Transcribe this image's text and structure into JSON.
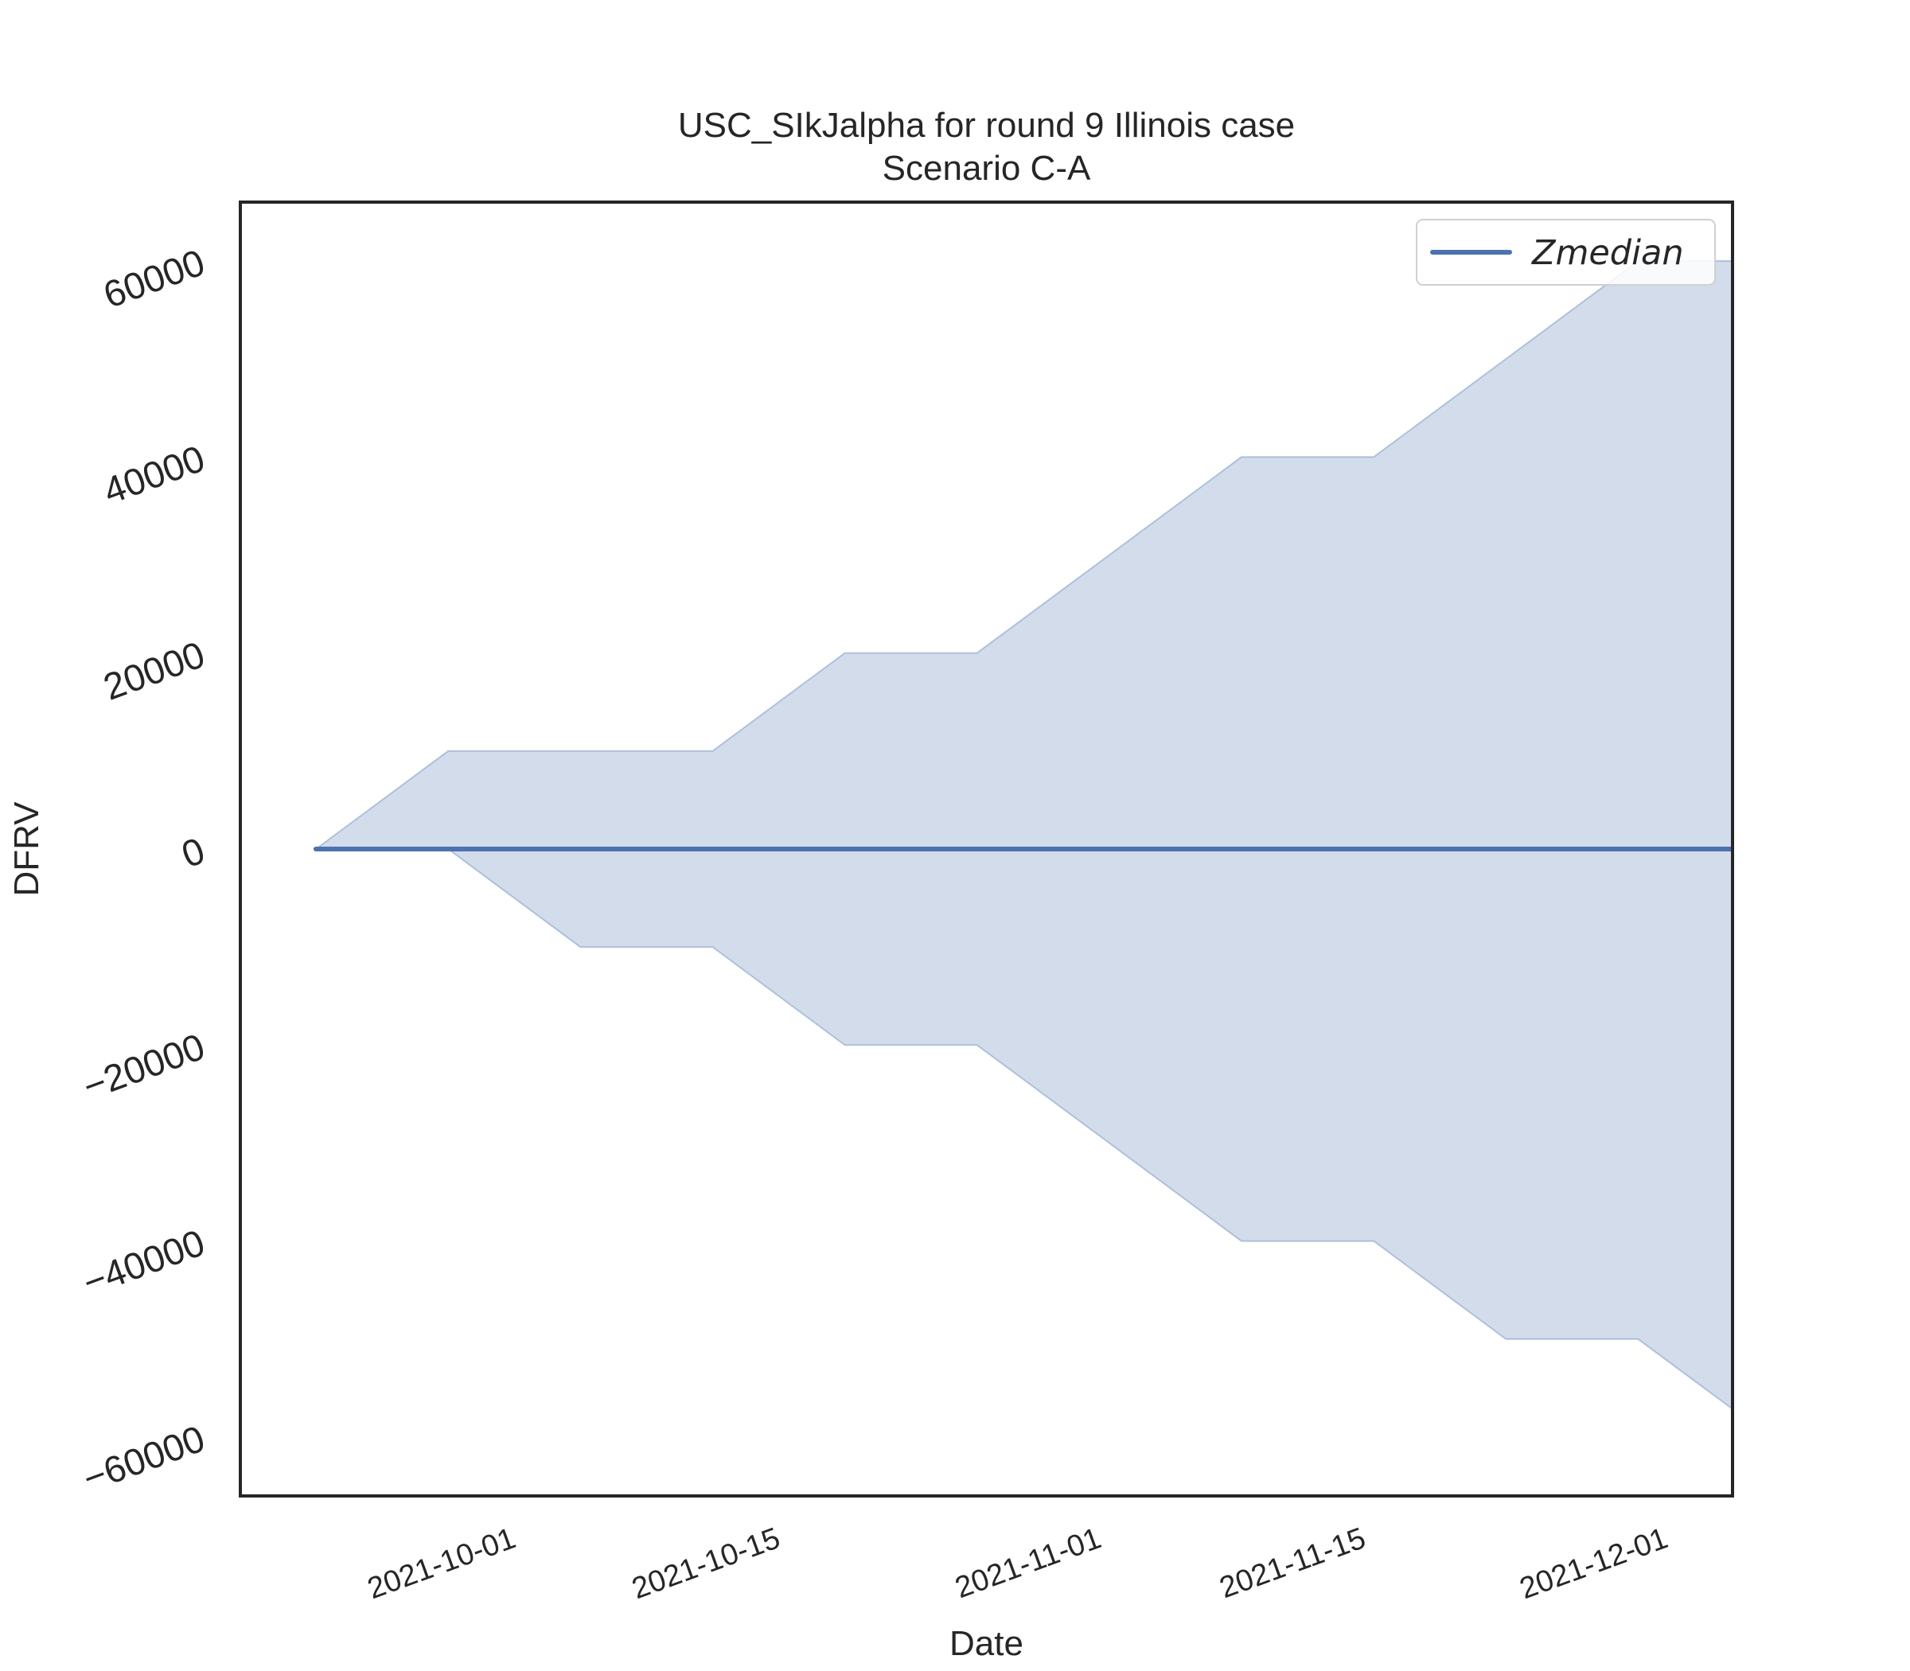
{
  "chart_data": {
    "type": "line",
    "title": "USC_SIkJalpha for round 9 Illinois case",
    "subtitle": "Scenario C-A",
    "xlabel": "Date",
    "ylabel": "DFRV",
    "x_ticks": [
      "2021-10-01",
      "2021-10-15",
      "2021-11-01",
      "2021-11-15",
      "2021-12-01"
    ],
    "y_ticks": [
      60000,
      40000,
      20000,
      0,
      -20000,
      -40000,
      -60000
    ],
    "y_tick_labels": [
      "60000",
      "40000",
      "20000",
      "0",
      "−20000",
      "−40000",
      "−60000"
    ],
    "xlim": [
      "2021-09-17",
      "2021-12-05"
    ],
    "ylim": [
      -66000,
      66000
    ],
    "x": [
      "2021-09-21",
      "2021-09-28",
      "2021-10-05",
      "2021-10-12",
      "2021-10-19",
      "2021-10-26",
      "2021-11-02",
      "2021-11-09",
      "2021-11-16",
      "2021-11-23",
      "2021-11-30",
      "2021-12-07"
    ],
    "series": [
      {
        "name": "Zmedian",
        "color": "#4c72b0",
        "values": [
          0,
          0,
          0,
          0,
          0,
          0,
          0,
          0,
          0,
          0,
          0,
          0
        ]
      }
    ],
    "band": {
      "color": "#4c72b0",
      "opacity": 0.25,
      "upper": [
        0,
        10000,
        10000,
        10000,
        20000,
        20000,
        30000,
        40000,
        40000,
        50000,
        60000,
        60000
      ],
      "lower": [
        0,
        0,
        -10000,
        -10000,
        -20000,
        -20000,
        -30000,
        -40000,
        -40000,
        -50000,
        -50000,
        -60000
      ]
    },
    "legend": {
      "placement": "top-right",
      "entries": [
        "Zmedian"
      ]
    },
    "grid": false
  }
}
